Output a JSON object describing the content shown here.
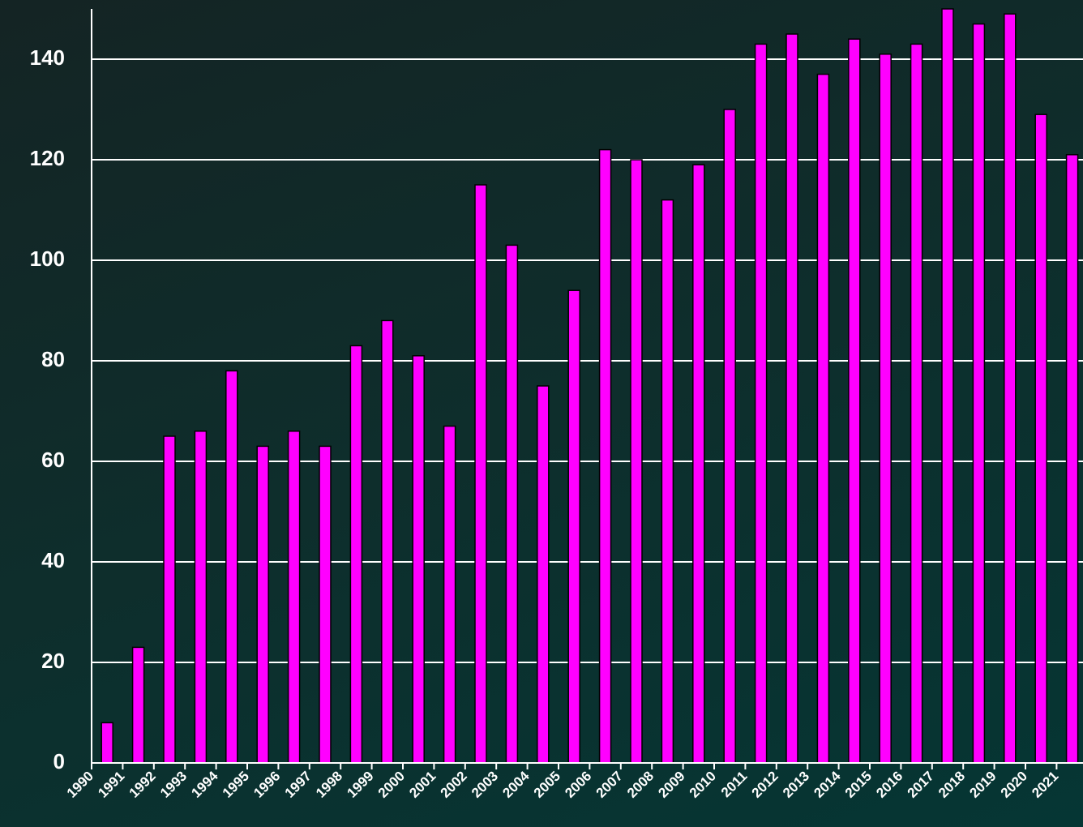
{
  "chart_data": {
    "type": "bar",
    "categories": [
      "1990",
      "1991",
      "1992",
      "1993",
      "1994",
      "1995",
      "1996",
      "1997",
      "1998",
      "1999",
      "2000",
      "2001",
      "2002",
      "2003",
      "2004",
      "2005",
      "2006",
      "2007",
      "2008",
      "2009",
      "2010",
      "2011",
      "2012",
      "2013",
      "2014",
      "2015",
      "2016",
      "2017",
      "2018",
      "2019",
      "2020",
      "2021"
    ],
    "values": [
      8,
      23,
      65,
      66,
      78,
      63,
      66,
      63,
      83,
      88,
      81,
      67,
      115,
      103,
      75,
      94,
      122,
      120,
      112,
      119,
      130,
      143,
      145,
      137,
      144,
      141,
      143,
      150,
      147,
      149,
      129,
      121
    ],
    "color": "#ff00ff",
    "ylim": [
      0,
      150
    ],
    "yticks": [
      0,
      20,
      40,
      60,
      80,
      100,
      120,
      140
    ],
    "grid": true
  }
}
